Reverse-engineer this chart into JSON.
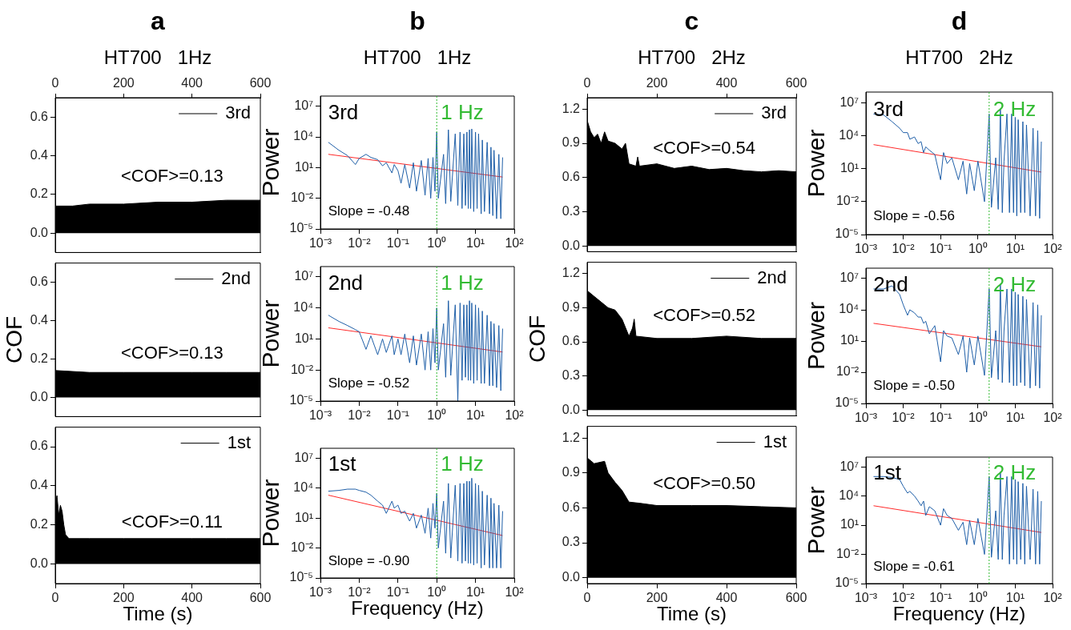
{
  "chart_data": [
    {
      "type": "area",
      "title": "a",
      "subtitle": "HT700   1Hz",
      "x2lim": [
        0,
        600
      ],
      "x2ticks": [
        0,
        200,
        400,
        600
      ],
      "xlim": [
        0,
        600
      ],
      "xticks": [
        0,
        200,
        400,
        600
      ],
      "tick_labels": "y",
      "ylim": [
        -0.1,
        0.7
      ],
      "yticks": [
        {
          "value": 0,
          "label": "0.0"
        },
        0.2,
        0.4,
        0.6
      ],
      "legend": "top right",
      "annotations": [
        "<COF>=0.13"
      ],
      "series": [
        {
          "name": "3rd",
          "color": "#000000",
          "x": [
            0,
            50,
            100,
            200,
            300,
            400,
            500,
            600
          ],
          "values": [
            0.14,
            0.14,
            0.15,
            0.15,
            0.16,
            0.16,
            0.17,
            0.17
          ]
        }
      ]
    },
    {
      "type": "area",
      "xlim": [
        0,
        600
      ],
      "xticks": [
        0,
        200,
        400,
        600
      ],
      "tick_labels": "y",
      "ylim": [
        -0.1,
        0.7
      ],
      "yticks": [
        {
          "value": 0,
          "label": "0.0"
        },
        0.2,
        0.4,
        0.6
      ],
      "ylabel": "COF",
      "legend": "top right",
      "annotations": [
        "<COF>=0.13"
      ],
      "series": [
        {
          "name": "2nd",
          "color": "#000000",
          "x": [
            0,
            100,
            200,
            300,
            400,
            500,
            600
          ],
          "values": [
            0.14,
            0.13,
            0.13,
            0.13,
            0.13,
            0.13,
            0.13
          ]
        }
      ]
    },
    {
      "type": "area",
      "xlim": [
        0,
        600
      ],
      "xticks": [
        0,
        200,
        400,
        600
      ],
      "ylim": [
        -0.1,
        0.7
      ],
      "yticks": [
        {
          "value": 0,
          "label": "0.0"
        },
        0.2,
        0.4,
        0.6
      ],
      "xlabel": "Time (s)",
      "legend": "top right",
      "annotations": [
        "<COF>=0.11"
      ],
      "series": [
        {
          "name": "1st",
          "color": "#000000",
          "x": [
            0,
            5,
            10,
            15,
            20,
            25,
            30,
            40,
            100,
            200,
            300,
            400,
            500,
            600
          ],
          "values": [
            0.3,
            0.35,
            0.25,
            0.3,
            0.27,
            0.2,
            0.15,
            0.13,
            0.13,
            0.13,
            0.13,
            0.13,
            0.13,
            0.13
          ]
        }
      ]
    },
    {
      "type": "line",
      "title": "b",
      "subtitle": "HT700   1Hz",
      "log": "xy",
      "xlim": [
        0.001,
        100
      ],
      "xticks": [
        {
          "value": 0.001,
          "label": "10⁻³"
        },
        {
          "value": 0.01,
          "label": "10⁻²"
        },
        {
          "value": 0.1,
          "label": "10⁻¹"
        },
        {
          "value": 1,
          "label": "10⁰"
        },
        {
          "value": 10,
          "label": "10¹"
        },
        {
          "value": 100,
          "label": "10²"
        }
      ],
      "ylim": [
        1e-05,
        100000000
      ],
      "yticks": [
        {
          "value": 1e-05,
          "label": "10⁻⁵"
        },
        {
          "value": 0.01,
          "label": "10⁻²"
        },
        {
          "value": 10,
          "label": "10¹"
        },
        {
          "value": 10000,
          "label": "10⁴"
        },
        {
          "value": 10000000,
          "label": "10⁷"
        }
      ],
      "ylabel": "Power",
      "annotations": [
        "3rd",
        "Slope = -0.48"
      ],
      "ref_lines": [
        {
          "axis": "x",
          "value": 1,
          "label": "1 Hz",
          "color": "#33bb33",
          "line_style": "dotted"
        }
      ],
      "series": [
        {
          "color": "#1f5fa8",
          "x": [
            0.0016,
            0.003,
            0.005,
            0.008,
            0.01,
            0.015,
            0.02,
            0.03,
            0.04,
            0.05,
            0.07,
            0.08,
            0.1,
            0.12,
            0.15,
            0.2,
            0.25,
            0.3,
            0.4,
            0.5,
            0.6,
            0.7,
            0.8,
            0.9,
            1,
            1.1,
            1.5,
            1.7,
            2,
            2.3,
            3,
            3.5,
            4,
            4.5,
            5,
            5.5,
            6,
            6.5,
            7,
            7.5,
            8,
            9,
            10,
            11,
            12,
            14,
            15,
            17,
            20,
            23,
            25,
            28,
            30,
            35,
            40,
            45,
            50
          ],
          "values": [
            3000,
            500,
            150,
            20,
            80,
            200,
            100,
            60,
            15,
            30,
            3,
            20,
            5,
            0.3,
            20,
            0.1,
            30,
            0.05,
            50,
            0.02,
            80,
            0.01,
            100,
            0.05,
            30000,
            0.01,
            200,
            0.003,
            50000,
            0.005,
            20000,
            0.002,
            30000,
            0.001,
            20000,
            0.002,
            30000,
            0.001,
            50000,
            0.001,
            60000,
            0.0005,
            30000,
            0.001,
            20000,
            0.0003,
            5000,
            0.0005,
            3000,
            0.0003,
            1000,
            0.0002,
            500,
            0.0001,
            200,
            0.0001,
            100
          ]
        },
        {
          "type": "line",
          "color": "#ff2a2a",
          "x": [
            0.0016,
            50
          ],
          "values": [
            200,
            1.2
          ]
        }
      ]
    },
    {
      "type": "line",
      "log": "xy",
      "xlim": [
        0.001,
        100
      ],
      "xticks": [
        {
          "value": 0.001,
          "label": "10⁻³"
        },
        {
          "value": 0.01,
          "label": "10⁻²"
        },
        {
          "value": 0.1,
          "label": "10⁻¹"
        },
        {
          "value": 1,
          "label": "10⁰"
        },
        {
          "value": 10,
          "label": "10¹"
        },
        {
          "value": 100,
          "label": "10²"
        }
      ],
      "ylim": [
        1e-05,
        100000000
      ],
      "yticks": [
        {
          "value": 1e-05,
          "label": "10⁻⁵"
        },
        {
          "value": 0.01,
          "label": "10⁻²"
        },
        {
          "value": 10,
          "label": "10¹"
        },
        {
          "value": 10000,
          "label": "10⁴"
        },
        {
          "value": 10000000,
          "label": "10⁷"
        }
      ],
      "ylabel": "Power",
      "annotations": [
        "2nd",
        "Slope = -0.52"
      ],
      "ref_lines": [
        {
          "axis": "x",
          "value": 1,
          "label": "1 Hz",
          "color": "#33bb33",
          "line_style": "dotted"
        }
      ],
      "series": [
        {
          "color": "#1f5fa8",
          "x": [
            0.0016,
            0.003,
            0.005,
            0.008,
            0.01,
            0.015,
            0.02,
            0.03,
            0.04,
            0.05,
            0.07,
            0.08,
            0.1,
            0.12,
            0.15,
            0.2,
            0.25,
            0.3,
            0.4,
            0.5,
            0.6,
            0.7,
            0.8,
            0.9,
            1,
            1.1,
            1.5,
            1.7,
            2,
            2.3,
            3,
            3.5,
            4,
            4.5,
            5,
            5.5,
            6,
            6.5,
            7,
            7.5,
            8,
            9,
            10,
            11,
            12,
            14,
            15,
            17,
            20,
            23,
            25,
            28,
            30,
            35,
            40,
            45,
            50
          ],
          "values": [
            2000,
            500,
            200,
            80,
            50,
            1,
            20,
            0.3,
            10,
            0.5,
            20,
            0.3,
            10,
            0.3,
            30,
            0.05,
            20,
            0.03,
            30,
            0.01,
            50,
            0.01,
            100,
            0.05,
            10000,
            0.01,
            300,
            0.002,
            50000,
            0.003,
            20000,
            1e-05,
            30000,
            0.001,
            20000,
            0.002,
            20000,
            0.001,
            50000,
            0.001,
            30000,
            0.0005,
            20000,
            0.001,
            10000,
            0.0005,
            5000,
            0.0005,
            2000,
            0.0003,
            500,
            0.0003,
            300,
            0.0002,
            200,
            0.0001,
            100
          ]
        },
        {
          "type": "line",
          "color": "#ff2a2a",
          "x": [
            0.0016,
            50
          ],
          "values": [
            120,
            0.55
          ]
        }
      ]
    },
    {
      "type": "line",
      "log": "xy",
      "xlim": [
        0.001,
        100
      ],
      "xticks": [
        {
          "value": 0.001,
          "label": "10⁻³"
        },
        {
          "value": 0.01,
          "label": "10⁻²"
        },
        {
          "value": 0.1,
          "label": "10⁻¹"
        },
        {
          "value": 1,
          "label": "10⁰"
        },
        {
          "value": 10,
          "label": "10¹"
        },
        {
          "value": 100,
          "label": "10²"
        }
      ],
      "ylim": [
        1e-05,
        100000000
      ],
      "yticks": [
        {
          "value": 1e-05,
          "label": "10⁻⁵"
        },
        {
          "value": 0.01,
          "label": "10⁻²"
        },
        {
          "value": 10,
          "label": "10¹"
        },
        {
          "value": 10000,
          "label": "10⁴"
        },
        {
          "value": 10000000,
          "label": "10⁷"
        }
      ],
      "xlabel": "Frequency (Hz)",
      "ylabel": "Power",
      "annotations": [
        "1st",
        "Slope = -0.90"
      ],
      "ref_lines": [
        {
          "axis": "x",
          "value": 1,
          "label": "1 Hz",
          "color": "#33bb33",
          "line_style": "dotted"
        }
      ],
      "series": [
        {
          "color": "#1f5fa8",
          "x": [
            0.0016,
            0.003,
            0.005,
            0.008,
            0.01,
            0.015,
            0.02,
            0.03,
            0.04,
            0.05,
            0.07,
            0.08,
            0.1,
            0.12,
            0.15,
            0.2,
            0.25,
            0.3,
            0.4,
            0.5,
            0.6,
            0.7,
            0.8,
            0.9,
            1,
            1.1,
            1.5,
            1.7,
            2,
            2.3,
            3,
            3.5,
            4,
            4.5,
            5,
            5.5,
            6,
            6.5,
            7,
            7.5,
            8,
            9,
            10,
            11,
            12,
            14,
            15,
            17,
            20,
            23,
            25,
            28,
            30,
            35,
            40,
            45,
            50
          ],
          "values": [
            5000,
            6000,
            8000,
            8000,
            6000,
            4000,
            2000,
            500,
            200,
            30,
            500,
            100,
            200,
            30,
            50,
            5,
            30,
            1,
            20,
            0.3,
            100,
            0.1,
            300,
            1,
            3000,
            0.01,
            500,
            0.003,
            30000,
            0.001,
            20000,
            0.0005,
            30000,
            0.0003,
            30000,
            0.0005,
            50000,
            0.0003,
            50000,
            0.0003,
            100000,
            0.0002,
            30000,
            0.0003,
            20000,
            0.0001,
            5000,
            0.0002,
            2000,
            0.0001,
            1000,
            0.0001,
            300,
            0.0001,
            200,
            0.0001,
            50
          ]
        },
        {
          "type": "line",
          "color": "#ff2a2a",
          "x": [
            0.0016,
            50
          ],
          "values": [
            2000,
            0.18
          ]
        }
      ]
    },
    {
      "type": "area",
      "title": "c",
      "subtitle": "HT700   2Hz",
      "x2lim": [
        0,
        600
      ],
      "x2ticks": [
        0,
        200,
        400,
        600
      ],
      "xlim": [
        0,
        600
      ],
      "xticks": [
        0,
        200,
        400,
        600
      ],
      "tick_labels": "y",
      "ylim": [
        -0.05,
        1.3
      ],
      "yticks": [
        {
          "value": 0,
          "label": "0.0"
        },
        0.3,
        0.6,
        0.9,
        1.2
      ],
      "legend": "top right",
      "annotations": [
        "<COF>=0.54"
      ],
      "series": [
        {
          "name": "3rd",
          "color": "#000000",
          "x": [
            0,
            10,
            20,
            30,
            40,
            50,
            60,
            80,
            100,
            110,
            120,
            140,
            145,
            150,
            200,
            250,
            300,
            350,
            400,
            450,
            500,
            550,
            600
          ],
          "values": [
            1.1,
            1.0,
            0.95,
            0.98,
            0.9,
            1.0,
            0.92,
            0.9,
            0.85,
            0.9,
            0.72,
            0.7,
            0.78,
            0.7,
            0.72,
            0.68,
            0.7,
            0.67,
            0.68,
            0.66,
            0.65,
            0.66,
            0.65
          ]
        }
      ]
    },
    {
      "type": "area",
      "xlim": [
        0,
        600
      ],
      "xticks": [
        0,
        200,
        400,
        600
      ],
      "tick_labels": "y",
      "ylim": [
        -0.05,
        1.3
      ],
      "yticks": [
        {
          "value": 0,
          "label": "0.0"
        },
        0.3,
        0.6,
        0.9,
        1.2
      ],
      "ylabel": "COF",
      "legend": "top right",
      "annotations": [
        "<COF>=0.52"
      ],
      "series": [
        {
          "name": "2nd",
          "color": "#000000",
          "x": [
            0,
            20,
            40,
            60,
            80,
            100,
            120,
            130,
            135,
            140,
            200,
            300,
            400,
            500,
            600
          ],
          "values": [
            1.05,
            1.0,
            0.95,
            0.9,
            0.88,
            0.8,
            0.65,
            0.72,
            0.8,
            0.65,
            0.63,
            0.63,
            0.65,
            0.63,
            0.63
          ]
        }
      ]
    },
    {
      "type": "area",
      "xlim": [
        0,
        600
      ],
      "xticks": [
        0,
        200,
        400,
        600
      ],
      "ylim": [
        -0.05,
        1.3
      ],
      "yticks": [
        {
          "value": 0,
          "label": "0.0"
        },
        0.3,
        0.6,
        0.9,
        1.2
      ],
      "xlabel": "Time (s)",
      "legend": "top right",
      "annotations": [
        "<COF>=0.50"
      ],
      "series": [
        {
          "name": "1st",
          "color": "#000000",
          "x": [
            0,
            20,
            50,
            60,
            80,
            100,
            120,
            150,
            200,
            300,
            400,
            500,
            600
          ],
          "values": [
            1.03,
            0.98,
            1.0,
            0.9,
            0.82,
            0.75,
            0.65,
            0.64,
            0.62,
            0.62,
            0.62,
            0.61,
            0.6
          ]
        }
      ]
    },
    {
      "type": "line",
      "title": "d",
      "subtitle": "HT700   2Hz",
      "log": "xy",
      "xlim": [
        0.001,
        100
      ],
      "xticks": [
        {
          "value": 0.001,
          "label": "10⁻³"
        },
        {
          "value": 0.01,
          "label": "10⁻²"
        },
        {
          "value": 0.1,
          "label": "10⁻¹"
        },
        {
          "value": 1,
          "label": "10⁰"
        },
        {
          "value": 10,
          "label": "10¹"
        },
        {
          "value": 100,
          "label": "10²"
        }
      ],
      "ylim": [
        1e-05,
        100000000
      ],
      "yticks": [
        {
          "value": 1e-05,
          "label": "10⁻⁵"
        },
        {
          "value": 0.01,
          "label": "10⁻²"
        },
        {
          "value": 10,
          "label": "10¹"
        },
        {
          "value": 10000,
          "label": "10⁴"
        },
        {
          "value": 10000000,
          "label": "10⁷"
        }
      ],
      "ylabel": "Power",
      "annotations": [
        "3rd",
        "Slope = -0.56"
      ],
      "ref_lines": [
        {
          "axis": "x",
          "value": 2,
          "label": "2 Hz",
          "color": "#33bb33",
          "line_style": "dotted"
        }
      ],
      "series": [
        {
          "color": "#1f5fa8",
          "x": [
            0.0016,
            0.003,
            0.005,
            0.008,
            0.01,
            0.013,
            0.015,
            0.02,
            0.025,
            0.03,
            0.035,
            0.04,
            0.05,
            0.07,
            0.1,
            0.12,
            0.15,
            0.2,
            0.3,
            0.4,
            0.5,
            0.6,
            0.8,
            1,
            1.5,
            2,
            2.3,
            3,
            3.5,
            4,
            4.5,
            5,
            6,
            7,
            8,
            9,
            10,
            11,
            12,
            14,
            16,
            18,
            20,
            25,
            30,
            35,
            40,
            45,
            50
          ],
          "values": [
            1000000.0,
            800000.0,
            200000.0,
            50000.0,
            20000.0,
            20000.0,
            5000,
            8000,
            2000,
            3000,
            300,
            1000,
            500,
            200,
            1,
            300,
            30,
            100,
            1,
            50,
            0.05,
            30,
            0.1,
            50,
            0.01,
            1000000.0,
            0.003,
            100,
            0.002,
            3000000.0,
            0.001,
            50,
            1000000.0,
            0.001,
            1000000.0,
            0.001,
            500000.0,
            0.0005,
            300000.0,
            0.001,
            200000.0,
            0.001,
            100000.0,
            0.0005,
            50000.0,
            0.0005,
            30000.0,
            0.0003,
            3000
          ]
        },
        {
          "type": "line",
          "color": "#ff2a2a",
          "x": [
            0.0016,
            50
          ],
          "values": [
            1600,
            5
          ]
        }
      ]
    },
    {
      "type": "line",
      "log": "xy",
      "xlim": [
        0.001,
        100
      ],
      "xticks": [
        {
          "value": 0.001,
          "label": "10⁻³"
        },
        {
          "value": 0.01,
          "label": "10⁻²"
        },
        {
          "value": 0.1,
          "label": "10⁻¹"
        },
        {
          "value": 1,
          "label": "10⁰"
        },
        {
          "value": 10,
          "label": "10¹"
        },
        {
          "value": 100,
          "label": "10²"
        }
      ],
      "ylim": [
        1e-05,
        100000000
      ],
      "yticks": [
        {
          "value": 1e-05,
          "label": "10⁻⁵"
        },
        {
          "value": 0.01,
          "label": "10⁻²"
        },
        {
          "value": 10,
          "label": "10¹"
        },
        {
          "value": 10000,
          "label": "10⁴"
        },
        {
          "value": 10000000,
          "label": "10⁷"
        }
      ],
      "ylabel": "Power",
      "annotations": [
        "2nd",
        "Slope = -0.50"
      ],
      "ref_lines": [
        {
          "axis": "x",
          "value": 2,
          "label": "2 Hz",
          "color": "#33bb33",
          "line_style": "dotted"
        }
      ],
      "series": [
        {
          "color": "#1f5fa8",
          "x": [
            0.0016,
            0.003,
            0.005,
            0.008,
            0.01,
            0.013,
            0.015,
            0.02,
            0.025,
            0.03,
            0.035,
            0.04,
            0.05,
            0.07,
            0.1,
            0.12,
            0.15,
            0.2,
            0.3,
            0.4,
            0.5,
            0.6,
            0.8,
            1,
            1.5,
            2,
            2.3,
            3,
            3.5,
            4,
            4.5,
            5,
            6,
            7,
            8,
            9,
            10,
            11,
            12,
            14,
            16,
            18,
            20,
            25,
            30,
            35,
            40,
            45,
            50
          ],
          "values": [
            1000000.0,
            1000000.0,
            2000000.0,
            300000.0,
            30000.0,
            3000,
            10000.0,
            5000,
            2000,
            2000,
            500,
            800,
            50,
            300,
            0.1,
            100,
            30,
            20,
            0.5,
            30,
            0.01,
            20,
            0.05,
            30,
            0.005,
            1000000.0,
            0.003,
            100,
            0.002,
            3000000.0,
            0.001,
            100,
            1000000.0,
            0.001,
            1000000.0,
            0.0005,
            500000.0,
            0.0005,
            300000.0,
            0.001,
            200000.0,
            0.0005,
            100000.0,
            0.0003,
            50000.0,
            0.0005,
            30000.0,
            0.0003,
            3000
          ]
        },
        {
          "type": "line",
          "color": "#ff2a2a",
          "x": [
            0.0016,
            50
          ],
          "values": [
            500,
            2.8
          ]
        }
      ]
    },
    {
      "type": "line",
      "log": "xy",
      "xlim": [
        0.001,
        100
      ],
      "xticks": [
        {
          "value": 0.001,
          "label": "10⁻³"
        },
        {
          "value": 0.01,
          "label": "10⁻²"
        },
        {
          "value": 0.1,
          "label": "10⁻¹"
        },
        {
          "value": 1,
          "label": "10⁰"
        },
        {
          "value": 10,
          "label": "10¹"
        },
        {
          "value": 100,
          "label": "10²"
        }
      ],
      "ylim": [
        1e-05,
        100000000
      ],
      "yticks": [
        {
          "value": 1e-05,
          "label": "10⁻⁵"
        },
        {
          "value": 0.01,
          "label": "10⁻²"
        },
        {
          "value": 10,
          "label": "10¹"
        },
        {
          "value": 10000,
          "label": "10⁴"
        },
        {
          "value": 10000000,
          "label": "10⁷"
        }
      ],
      "xlabel": "Frequency (Hz)",
      "ylabel": "Power",
      "annotations": [
        "1st",
        "Slope = -0.61"
      ],
      "ref_lines": [
        {
          "axis": "x",
          "value": 2,
          "label": "2 Hz",
          "color": "#33bb33",
          "line_style": "dotted"
        }
      ],
      "series": [
        {
          "color": "#1f5fa8",
          "x": [
            0.0016,
            0.003,
            0.005,
            0.008,
            0.01,
            0.013,
            0.015,
            0.02,
            0.025,
            0.03,
            0.035,
            0.04,
            0.05,
            0.07,
            0.1,
            0.12,
            0.15,
            0.2,
            0.3,
            0.4,
            0.5,
            0.6,
            0.8,
            1,
            1.5,
            2,
            2.3,
            3,
            3.5,
            4,
            4.5,
            5,
            6,
            7,
            8,
            9,
            10,
            11,
            12,
            14,
            16,
            18,
            20,
            25,
            30,
            35,
            40,
            45,
            50
          ],
          "values": [
            1000000.0,
            1000000.0,
            800000.0,
            500000.0,
            100000.0,
            20000.0,
            30000.0,
            10000.0,
            3000,
            1000,
            3000,
            100,
            800,
            300,
            10,
            500,
            100,
            50,
            3,
            20,
            0.1,
            30,
            0.1,
            50,
            0.01,
            1000000.0,
            0.005,
            300,
            0.003,
            3000000.0,
            0.003,
            100,
            1000000.0,
            0.001,
            1000000.0,
            0.003,
            500000.0,
            0.001,
            300000.0,
            0.003,
            200000.0,
            0.001,
            100000.0,
            0.003,
            50000.0,
            0.001,
            30000.0,
            0.001,
            3000
          ]
        },
        {
          "type": "line",
          "color": "#ff2a2a",
          "x": [
            0.0016,
            50
          ],
          "values": [
            1000,
            1.8
          ]
        }
      ]
    }
  ]
}
